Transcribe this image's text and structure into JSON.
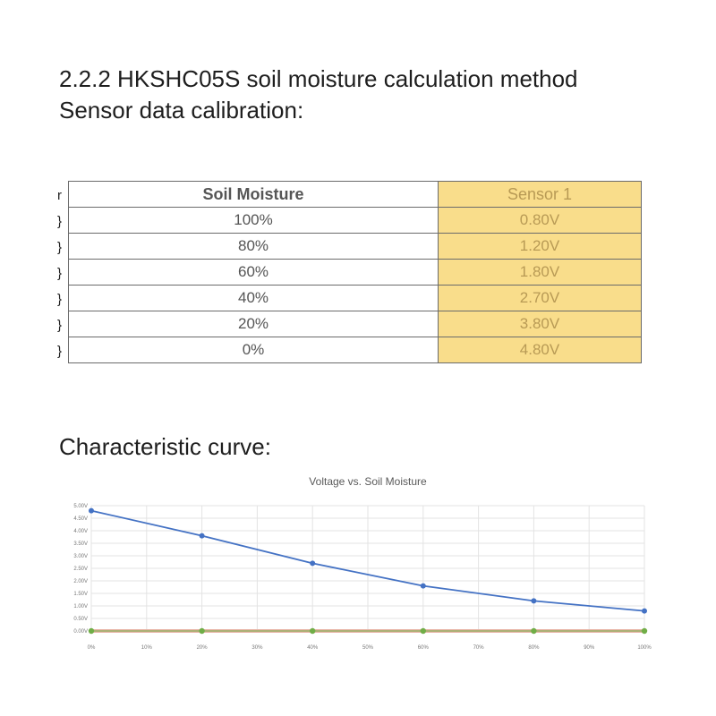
{
  "doc": {
    "section_heading": "2.2.2 HKSHC05S soil moisture calculation method",
    "subheading": "Sensor data calibration:",
    "curve_heading": "Characteristic curve:"
  },
  "table": {
    "headers": [
      "Soil Moisture",
      "Sensor 1"
    ],
    "rows": [
      [
        "100%",
        "0.80V"
      ],
      [
        "80%",
        "1.20V"
      ],
      [
        "60%",
        "1.80V"
      ],
      [
        "40%",
        "2.70V"
      ],
      [
        "20%",
        "3.80V"
      ],
      [
        "0%",
        "4.80V"
      ]
    ],
    "left_edge_marks": [
      "r",
      "}",
      "}",
      "}",
      "}",
      "}",
      "}"
    ],
    "header_bg": "#f9dd8b"
  },
  "chart_data": {
    "type": "line",
    "title": "Voltage vs. Soil Moisture",
    "x": [
      "0%",
      "20%",
      "40%",
      "60%",
      "80%",
      "100%"
    ],
    "x_ticks": [
      "0%",
      "10%",
      "20%",
      "30%",
      "40%",
      "50%",
      "60%",
      "70%",
      "80%",
      "90%",
      "100%"
    ],
    "y_ticks": [
      "0.00V",
      "0.50V",
      "1.00V",
      "1.50V",
      "2.00V",
      "2.50V",
      "3.00V",
      "3.50V",
      "4.00V",
      "4.50V",
      "5.00V"
    ],
    "ylim": [
      0,
      5
    ],
    "xlim": [
      0,
      100
    ],
    "grid": true,
    "series": [
      {
        "x": [
          0,
          20,
          40,
          60,
          80,
          100
        ],
        "values": [
          4.8,
          3.8,
          2.7,
          1.8,
          1.2,
          0.8
        ],
        "color": "#4472c4"
      },
      {
        "x": [
          0,
          20,
          40,
          60,
          80,
          100
        ],
        "values": [
          0,
          0,
          0,
          0,
          0,
          0
        ],
        "color": "#70ad47"
      }
    ],
    "baseline_color": "#e8b4a6"
  }
}
